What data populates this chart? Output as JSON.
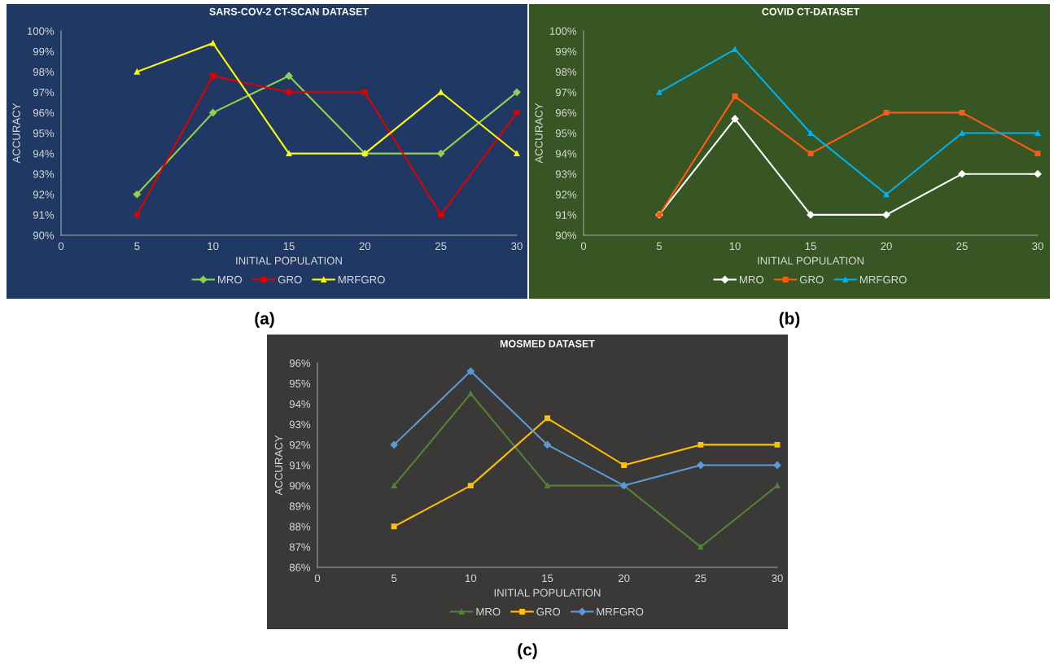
{
  "chart_data": [
    {
      "type": "line",
      "title": "SARS-COV-2 CT-SCAN DATASET",
      "xlabel": "INITIAL POPULATION",
      "ylabel": "ACCURACY",
      "x": [
        5,
        10,
        15,
        20,
        25,
        30
      ],
      "xlim": [
        0,
        30
      ],
      "xticks": [
        0,
        5,
        10,
        15,
        20,
        25,
        30
      ],
      "ylim": [
        90,
        100
      ],
      "yticks": [
        {
          "value": 90,
          "label": "90%"
        },
        {
          "value": 91,
          "label": "91%"
        },
        {
          "value": 92,
          "label": "92%"
        },
        {
          "value": 93,
          "label": "93%"
        },
        {
          "value": 94,
          "label": "94%"
        },
        {
          "value": 95,
          "label": "95%"
        },
        {
          "value": 96,
          "label": "96%"
        },
        {
          "value": 97,
          "label": "97%"
        },
        {
          "value": 98,
          "label": "98%"
        },
        {
          "value": 99,
          "label": "99%"
        },
        {
          "value": 100,
          "label": "100%"
        }
      ],
      "grid": false,
      "legend": "bottom",
      "annotations": [
        "(a)"
      ],
      "series": [
        {
          "name": "MRO",
          "color": "#92d050",
          "marker": "diamond",
          "values": [
            92,
            96,
            97.8,
            94,
            94,
            97
          ]
        },
        {
          "name": "GRO",
          "color": "#e00000",
          "marker": "square",
          "values": [
            91,
            97.8,
            97,
            97,
            91,
            96
          ]
        },
        {
          "name": "MRFGRO",
          "color": "#ffff00",
          "marker": "triangle",
          "values": [
            98,
            99.4,
            94,
            94,
            97,
            94
          ]
        }
      ]
    },
    {
      "type": "line",
      "title": "COVID CT-DATASET",
      "xlabel": "INITIAL POPULATION",
      "ylabel": "ACCURACY",
      "x": [
        5,
        10,
        15,
        20,
        25,
        30
      ],
      "xlim": [
        0,
        30
      ],
      "xticks": [
        0,
        5,
        10,
        15,
        20,
        25,
        30
      ],
      "ylim": [
        90,
        100
      ],
      "yticks": [
        {
          "value": 90,
          "label": "90%"
        },
        {
          "value": 91,
          "label": "91%"
        },
        {
          "value": 92,
          "label": "92%"
        },
        {
          "value": 93,
          "label": "93%"
        },
        {
          "value": 94,
          "label": "94%"
        },
        {
          "value": 95,
          "label": "95%"
        },
        {
          "value": 96,
          "label": "96%"
        },
        {
          "value": 97,
          "label": "97%"
        },
        {
          "value": 98,
          "label": "98%"
        },
        {
          "value": 99,
          "label": "99%"
        },
        {
          "value": 100,
          "label": "100%"
        }
      ],
      "grid": false,
      "legend": "bottom",
      "annotations": [
        "(b)"
      ],
      "series": [
        {
          "name": "MRO",
          "color": "#ffffff",
          "marker": "diamond",
          "values": [
            91,
            95.7,
            91,
            91,
            93,
            93
          ]
        },
        {
          "name": "GRO",
          "color": "#ff5a11",
          "marker": "square",
          "values": [
            91,
            96.8,
            94,
            96,
            96,
            94
          ]
        },
        {
          "name": "MRFGRO",
          "color": "#00b0f0",
          "marker": "triangle",
          "values": [
            97,
            99.1,
            95,
            92,
            95,
            95
          ]
        }
      ]
    },
    {
      "type": "line",
      "title": "MOSMED DATASET",
      "xlabel": "INITIAL POPULATION",
      "ylabel": "ACCURACY",
      "x": [
        5,
        10,
        15,
        20,
        25,
        30
      ],
      "xlim": [
        0,
        30
      ],
      "xticks": [
        0,
        5,
        10,
        15,
        20,
        25,
        30
      ],
      "ylim": [
        86,
        96
      ],
      "yticks": [
        {
          "value": 86,
          "label": "86%"
        },
        {
          "value": 87,
          "label": "87%"
        },
        {
          "value": 88,
          "label": "88%"
        },
        {
          "value": 89,
          "label": "89%"
        },
        {
          "value": 90,
          "label": "90%"
        },
        {
          "value": 91,
          "label": "91%"
        },
        {
          "value": 92,
          "label": "92%"
        },
        {
          "value": 93,
          "label": "93%"
        },
        {
          "value": 94,
          "label": "94%"
        },
        {
          "value": 95,
          "label": "95%"
        },
        {
          "value": 96,
          "label": "96%"
        }
      ],
      "grid": false,
      "legend": "bottom",
      "annotations": [
        "(c)"
      ],
      "series": [
        {
          "name": "MRO",
          "color": "#548235",
          "marker": "triangle",
          "values": [
            90,
            94.5,
            90,
            90,
            87,
            90
          ]
        },
        {
          "name": "GRO",
          "color": "#ffc000",
          "marker": "square",
          "values": [
            88,
            90,
            93.3,
            91,
            92,
            92
          ]
        },
        {
          "name": "MRFGRO",
          "color": "#5b9bd5",
          "marker": "diamond",
          "values": [
            92,
            95.6,
            92,
            90,
            91,
            91
          ]
        }
      ]
    }
  ]
}
